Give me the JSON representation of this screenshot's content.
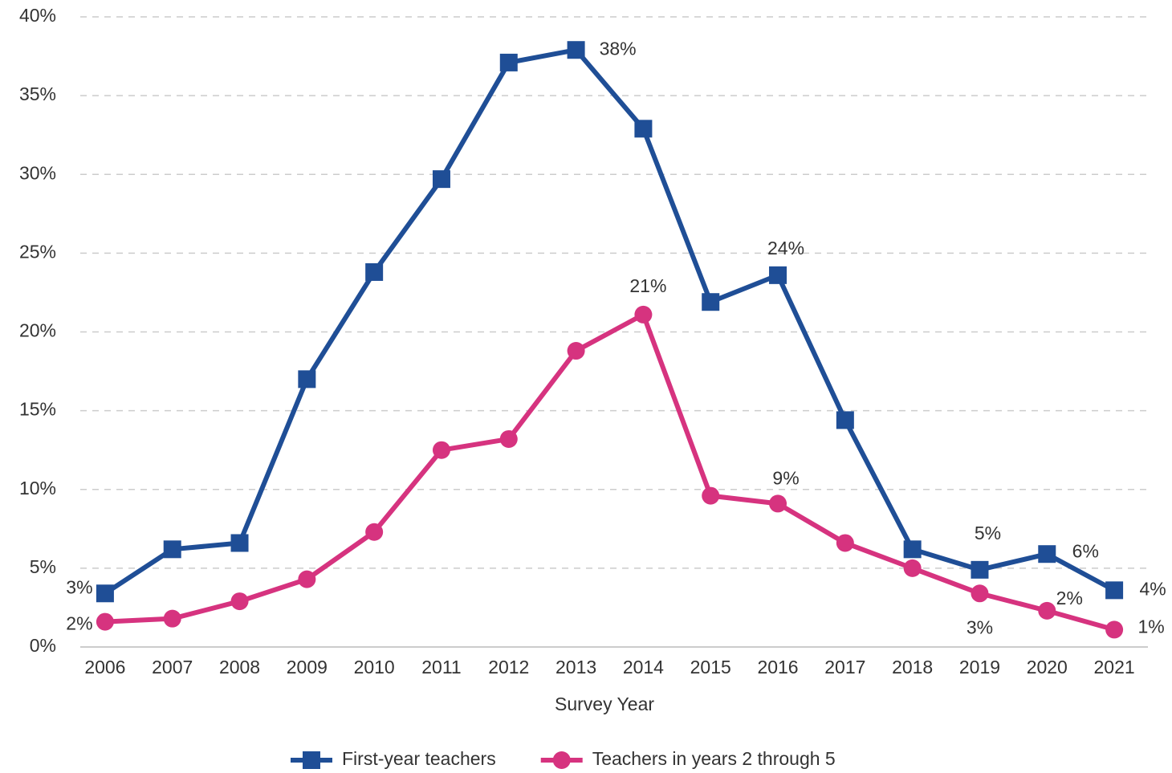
{
  "chart_data": {
    "type": "line",
    "x_label": "Survey Year",
    "categories": [
      "2006",
      "2007",
      "2008",
      "2009",
      "2010",
      "2011",
      "2012",
      "2013",
      "2014",
      "2015",
      "2016",
      "2017",
      "2018",
      "2019",
      "2020",
      "2021"
    ],
    "series": [
      {
        "name": "First-year teachers",
        "color": "#1f4e96",
        "marker": "square",
        "values": [
          3.4,
          6.2,
          6.6,
          17.0,
          23.8,
          29.7,
          37.1,
          37.9,
          32.9,
          21.9,
          23.6,
          14.4,
          6.2,
          4.9,
          5.9,
          3.6
        ],
        "value_labels": [
          "3%",
          null,
          null,
          null,
          null,
          null,
          null,
          "38%",
          null,
          null,
          "24%",
          null,
          null,
          "5%",
          "6%",
          "4%"
        ]
      },
      {
        "name": "Teachers in years 2 through 5",
        "color": "#d6337f",
        "marker": "circle",
        "values": [
          1.6,
          1.8,
          2.9,
          4.3,
          7.3,
          12.5,
          13.2,
          18.8,
          21.1,
          9.6,
          9.1,
          6.6,
          5.0,
          3.4,
          2.3,
          1.1
        ],
        "value_labels": [
          "2%",
          null,
          null,
          null,
          null,
          null,
          null,
          null,
          "21%",
          null,
          "9%",
          null,
          null,
          "3%",
          "2%",
          "1%"
        ]
      }
    ],
    "ylim": [
      0,
      40
    ],
    "yticks": [
      {
        "value": 0,
        "label": "0%"
      },
      {
        "value": 5,
        "label": "5%"
      },
      {
        "value": 10,
        "label": "10%"
      },
      {
        "value": 15,
        "label": "15%"
      },
      {
        "value": 20,
        "label": "20%"
      },
      {
        "value": 25,
        "label": "25%"
      },
      {
        "value": 30,
        "label": "30%"
      },
      {
        "value": 35,
        "label": "35%"
      },
      {
        "value": 40,
        "label": "40%"
      }
    ],
    "grid": true,
    "legend": "bottom"
  }
}
